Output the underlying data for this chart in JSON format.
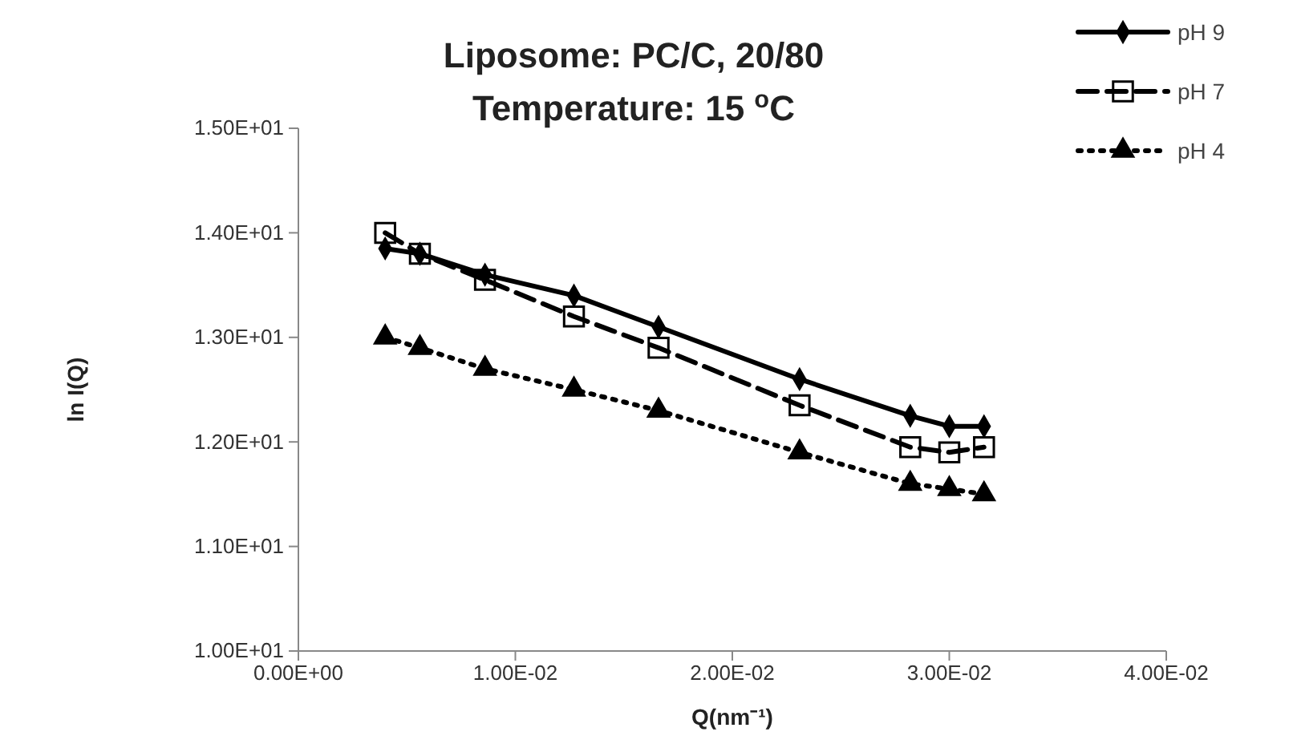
{
  "chart_data": {
    "type": "line",
    "title": "Liposome: PC/C, 20/80\nTemperature: 15 $^{o}$C",
    "xlabel": "Q(nm⁻¹)",
    "ylabel": "ln I(Q)",
    "x": [
      0.004,
      0.0056,
      0.0086,
      0.0127,
      0.0166,
      0.0231,
      0.0282,
      0.03,
      0.0316
    ],
    "series": [
      {
        "name": "pH 9",
        "color": "#000000",
        "marker": "diamond",
        "line_style": "solid",
        "values": [
          13.85,
          13.8,
          13.6,
          13.4,
          13.1,
          12.6,
          12.25,
          12.15,
          12.15
        ]
      },
      {
        "name": "pH 7",
        "color": "#000000",
        "marker": "square",
        "line_style": "dashed",
        "values": [
          14.0,
          13.8,
          13.55,
          13.2,
          12.9,
          12.35,
          11.95,
          11.9,
          11.95
        ]
      },
      {
        "name": "pH 4",
        "color": "#000000",
        "marker": "triangle",
        "line_style": "dotted",
        "values": [
          13.0,
          12.9,
          12.7,
          12.5,
          12.3,
          11.9,
          11.6,
          11.55,
          11.5
        ]
      }
    ],
    "xlim": [
      0,
      0.04
    ],
    "xticks": [
      {
        "value": 0,
        "label": "0.00E+00"
      },
      {
        "value": 0.01,
        "label": "1.00E-02"
      },
      {
        "value": 0.02,
        "label": "2.00E-02"
      },
      {
        "value": 0.03,
        "label": "3.00E-02"
      },
      {
        "value": 0.04,
        "label": "4.00E-02"
      }
    ],
    "ylim": [
      10,
      15
    ],
    "yticks": [
      {
        "value": 10,
        "label": "1.00E+01"
      },
      {
        "value": 11,
        "label": "1.10E+01"
      },
      {
        "value": 12,
        "label": "1.20E+01"
      },
      {
        "value": 13,
        "label": "1.30E+01"
      },
      {
        "value": 14,
        "label": "1.40E+01"
      },
      {
        "value": 15,
        "label": "1.50E+01"
      }
    ],
    "grid": false,
    "legend": "top right"
  }
}
